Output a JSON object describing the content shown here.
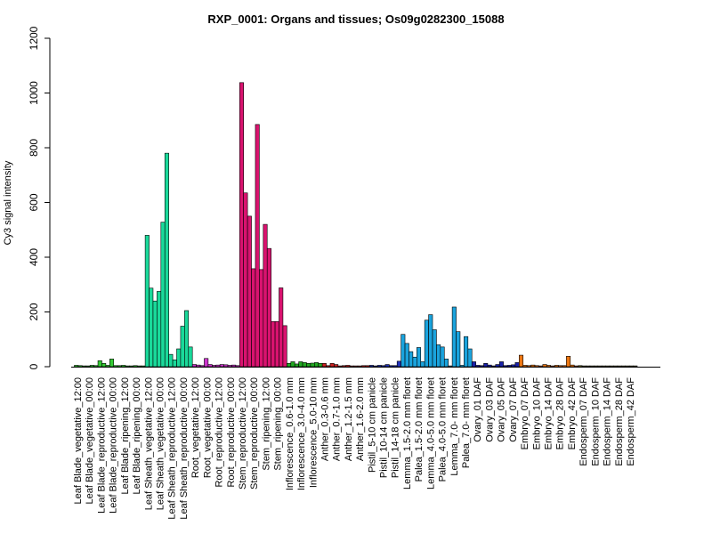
{
  "chart_data": {
    "type": "bar",
    "title": "RXP_0001: Organs and tissues; Os09g0282300_15088",
    "ylabel": "Cy3 signal intensity",
    "xlabel": "",
    "ylim": [
      0,
      1200
    ],
    "yticks": [
      0,
      200,
      400,
      600,
      800,
      1000,
      1200
    ],
    "grid": false,
    "legend": "none",
    "categories": [
      "Leaf Blade_vegetative_12:00",
      "Leaf Blade_vegetative_00:00",
      "Leaf Blade_reproductive_12:00",
      "Leaf Blade_reproductive_00:00",
      "Leaf Blade_ripening_12:00",
      "Leaf Blade_ripening_00:00",
      "Leaf Sheath_vegetative_12:00",
      "Leaf Sheath_vegetative_00:00",
      "Leaf Sheath_reproductive_12:00",
      "Leaf Sheath_reproductive_00:00",
      "Root_vegetative_12:00",
      "Root_vegetative_00:00",
      "Root_reproductive_12:00",
      "Root_reproductive_00:00",
      "Stem_reproductive_12:00",
      "Stem_reproductive_00:00",
      "Stem_ripening_12:00",
      "Stem_ripening_00:00",
      "Inflorescence_0.6-1.0 mm",
      "Inflorescence_3.0-4.0 mm",
      "Inflorescence_5.0-10 mm",
      "Anther_0.3-0.6 mm",
      "Anther_0.7-1.0 mm",
      "Anther_1.2-1.5 mm",
      "Anther_1.6-2.0 mm",
      "Pistil_5-10 cm panicle",
      "Pistil_10-14 cm panicle",
      "Pistil_14-18 cm panicle",
      "Lemma_1.5-2.0 mm floret",
      "Palea_1.5-2.0 mm floret",
      "Lemma_4.0-5.0 mm floret",
      "Palea_4.0-5.0 mm floret",
      "Lemma_7.0- mm floret",
      "Palea_7.0- mm floret",
      "Ovary_01 DAF",
      "Ovary_03 DAF",
      "Ovary_05 DAF",
      "Ovary_07 DAF",
      "Embryo_07 DAF",
      "Embryo_10 DAF",
      "Embryo_14 DAF",
      "Embryo_28 DAF",
      "Embryo_42 DAF",
      "Endosperm_07 DAF",
      "Endosperm_10 DAF",
      "Endosperm_14 DAF",
      "Endosperm_28 DAF",
      "Endosperm_42 DAF"
    ],
    "groups": [
      {
        "color": "#33cc33",
        "values": [
          5,
          4,
          3,
          3,
          5,
          4,
          22,
          12,
          5,
          28,
          4,
          4,
          5,
          3,
          3,
          4,
          3,
          3
        ]
      },
      {
        "color": "#1ad99a",
        "values": [
          480,
          287,
          240,
          275,
          528,
          780,
          45,
          25,
          65,
          148,
          205,
          72
        ]
      },
      {
        "color": "#cc33cc",
        "values": [
          8,
          6,
          4,
          30,
          8,
          5,
          6,
          8,
          7,
          5,
          6,
          4
        ]
      },
      {
        "color": "#d9136f",
        "values": [
          1038,
          635,
          550,
          358,
          885,
          355,
          520,
          432,
          165,
          165,
          288,
          150
        ]
      },
      {
        "color": "#22aa22",
        "values": [
          12,
          18,
          10,
          18,
          15,
          12,
          13,
          15,
          12
        ]
      },
      {
        "color": "#cc2222",
        "values": [
          12,
          4,
          12,
          8,
          3,
          4,
          5,
          3,
          3,
          3,
          4,
          4
        ]
      },
      {
        "color": "#2233bb",
        "values": [
          5,
          3,
          5,
          4,
          8,
          4,
          4,
          20
        ]
      },
      {
        "color": "#1aa3dd",
        "values": [
          118,
          85,
          55,
          35,
          70,
          18,
          170,
          190,
          135,
          80,
          72,
          28,
          3,
          218,
          128,
          5,
          110,
          65
        ]
      },
      {
        "color": "#1a22aa",
        "values": [
          18,
          5,
          4,
          12,
          6,
          3,
          8,
          18,
          4,
          5,
          7,
          15
        ]
      },
      {
        "color": "#ee7711",
        "values": [
          42,
          5,
          4,
          6,
          4,
          3,
          8,
          5,
          3,
          5,
          4,
          4,
          38,
          6,
          3
        ]
      },
      {
        "color": "#777722",
        "values": [
          4,
          3,
          3,
          3,
          3,
          3,
          3,
          3,
          3,
          3,
          3,
          3,
          3,
          3,
          3
        ]
      }
    ]
  }
}
